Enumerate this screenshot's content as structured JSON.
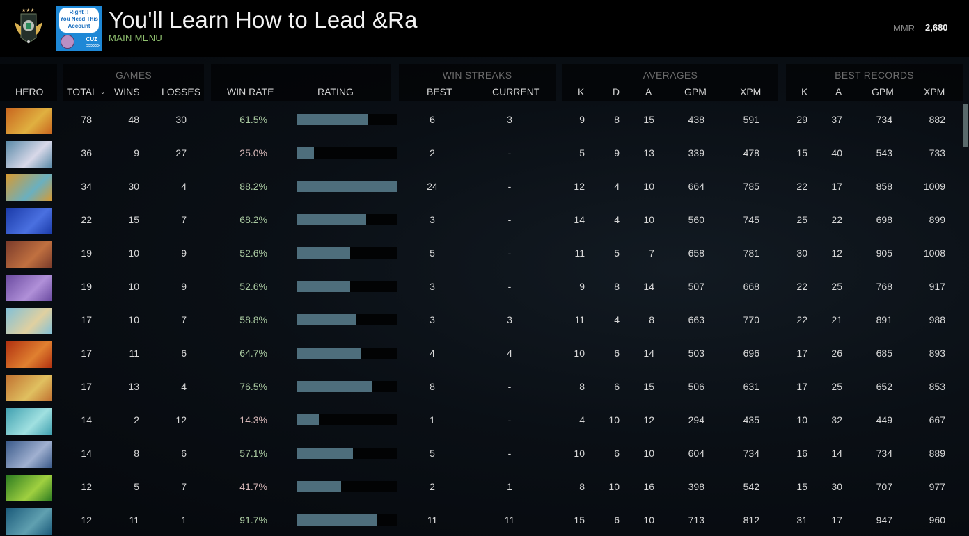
{
  "header": {
    "title": "You'll Learn How to Lead &Ra",
    "subtitle": "MAIN MENU",
    "mmr_label": "MMR",
    "mmr_value": "2,680",
    "avatar_text": {
      "line1": "Right !!",
      "line2": "You Need This",
      "line3": "Account",
      "tag": "CUZ",
      "arrows": ">>>>>>"
    }
  },
  "icons": {
    "rank": "rank-emblem-icon",
    "sort": "chevron-down-icon"
  },
  "colors": {
    "win_rate_positive": "#a9c8a0",
    "win_rate_negative": "#d7b8b8",
    "bar_fill": "#4e6e7c",
    "subtitle": "#8fbf6e"
  },
  "table": {
    "groups": [
      "GAMES",
      "WIN STREAKS",
      "AVERAGES",
      "BEST RECORDS"
    ],
    "columns": {
      "hero": "HERO",
      "total": "TOTAL",
      "wins": "WINS",
      "losses": "LOSSES",
      "win_rate": "WIN RATE",
      "rating": "RATING",
      "streak_best": "BEST",
      "streak_current": "CURRENT",
      "avg_k": "K",
      "avg_d": "D",
      "avg_a": "A",
      "avg_gpm": "GPM",
      "avg_xpm": "XPM",
      "best_k": "K",
      "best_a": "A",
      "best_gpm": "GPM",
      "best_xpm": "XPM"
    },
    "rows": [
      {
        "hero": "hero-1",
        "total": "78",
        "wins": "48",
        "losses": "30",
        "win_rate": "61.5%",
        "rating": 0.7,
        "best": "6",
        "current": "3",
        "k": "9",
        "d": "8",
        "a": "15",
        "gpm": "438",
        "xpm": "591",
        "bk": "29",
        "ba": "37",
        "bgpm": "734",
        "bxpm": "882"
      },
      {
        "hero": "hero-2",
        "total": "36",
        "wins": "9",
        "losses": "27",
        "win_rate": "25.0%",
        "rating": 0.17,
        "best": "2",
        "current": "-",
        "k": "5",
        "d": "9",
        "a": "13",
        "gpm": "339",
        "xpm": "478",
        "bk": "15",
        "ba": "40",
        "bgpm": "543",
        "bxpm": "733"
      },
      {
        "hero": "hero-3",
        "total": "34",
        "wins": "30",
        "losses": "4",
        "win_rate": "88.2%",
        "rating": 1.0,
        "best": "24",
        "current": "-",
        "k": "12",
        "d": "4",
        "a": "10",
        "gpm": "664",
        "xpm": "785",
        "bk": "22",
        "ba": "17",
        "bgpm": "858",
        "bxpm": "1009"
      },
      {
        "hero": "hero-4",
        "total": "22",
        "wins": "15",
        "losses": "7",
        "win_rate": "68.2%",
        "rating": 0.69,
        "best": "3",
        "current": "-",
        "k": "14",
        "d": "4",
        "a": "10",
        "gpm": "560",
        "xpm": "745",
        "bk": "25",
        "ba": "22",
        "bgpm": "698",
        "bxpm": "899"
      },
      {
        "hero": "hero-5",
        "total": "19",
        "wins": "10",
        "losses": "9",
        "win_rate": "52.6%",
        "rating": 0.53,
        "best": "5",
        "current": "-",
        "k": "11",
        "d": "5",
        "a": "7",
        "gpm": "658",
        "xpm": "781",
        "bk": "30",
        "ba": "12",
        "bgpm": "905",
        "bxpm": "1008"
      },
      {
        "hero": "hero-6",
        "total": "19",
        "wins": "10",
        "losses": "9",
        "win_rate": "52.6%",
        "rating": 0.53,
        "best": "3",
        "current": "-",
        "k": "9",
        "d": "8",
        "a": "14",
        "gpm": "507",
        "xpm": "668",
        "bk": "22",
        "ba": "25",
        "bgpm": "768",
        "bxpm": "917"
      },
      {
        "hero": "hero-7",
        "total": "17",
        "wins": "10",
        "losses": "7",
        "win_rate": "58.8%",
        "rating": 0.59,
        "best": "3",
        "current": "3",
        "k": "11",
        "d": "4",
        "a": "8",
        "gpm": "663",
        "xpm": "770",
        "bk": "22",
        "ba": "21",
        "bgpm": "891",
        "bxpm": "988"
      },
      {
        "hero": "hero-8",
        "total": "17",
        "wins": "11",
        "losses": "6",
        "win_rate": "64.7%",
        "rating": 0.64,
        "best": "4",
        "current": "4",
        "k": "10",
        "d": "6",
        "a": "14",
        "gpm": "503",
        "xpm": "696",
        "bk": "17",
        "ba": "26",
        "bgpm": "685",
        "bxpm": "893"
      },
      {
        "hero": "hero-9",
        "total": "17",
        "wins": "13",
        "losses": "4",
        "win_rate": "76.5%",
        "rating": 0.75,
        "best": "8",
        "current": "-",
        "k": "8",
        "d": "6",
        "a": "15",
        "gpm": "506",
        "xpm": "631",
        "bk": "17",
        "ba": "25",
        "bgpm": "652",
        "bxpm": "853"
      },
      {
        "hero": "hero-10",
        "total": "14",
        "wins": "2",
        "losses": "12",
        "win_rate": "14.3%",
        "rating": 0.22,
        "best": "1",
        "current": "-",
        "k": "4",
        "d": "10",
        "a": "12",
        "gpm": "294",
        "xpm": "435",
        "bk": "10",
        "ba": "32",
        "bgpm": "449",
        "bxpm": "667"
      },
      {
        "hero": "hero-11",
        "total": "14",
        "wins": "8",
        "losses": "6",
        "win_rate": "57.1%",
        "rating": 0.56,
        "best": "5",
        "current": "-",
        "k": "10",
        "d": "6",
        "a": "10",
        "gpm": "604",
        "xpm": "734",
        "bk": "16",
        "ba": "14",
        "bgpm": "734",
        "bxpm": "889"
      },
      {
        "hero": "hero-12",
        "total": "12",
        "wins": "5",
        "losses": "7",
        "win_rate": "41.7%",
        "rating": 0.44,
        "best": "2",
        "current": "1",
        "k": "8",
        "d": "10",
        "a": "16",
        "gpm": "398",
        "xpm": "542",
        "bk": "15",
        "ba": "30",
        "bgpm": "707",
        "bxpm": "977"
      },
      {
        "hero": "hero-13",
        "total": "12",
        "wins": "11",
        "losses": "1",
        "win_rate": "91.7%",
        "rating": 0.8,
        "best": "11",
        "current": "11",
        "k": "15",
        "d": "6",
        "a": "10",
        "gpm": "713",
        "xpm": "812",
        "bk": "31",
        "ba": "17",
        "bgpm": "947",
        "bxpm": "960"
      }
    ]
  }
}
